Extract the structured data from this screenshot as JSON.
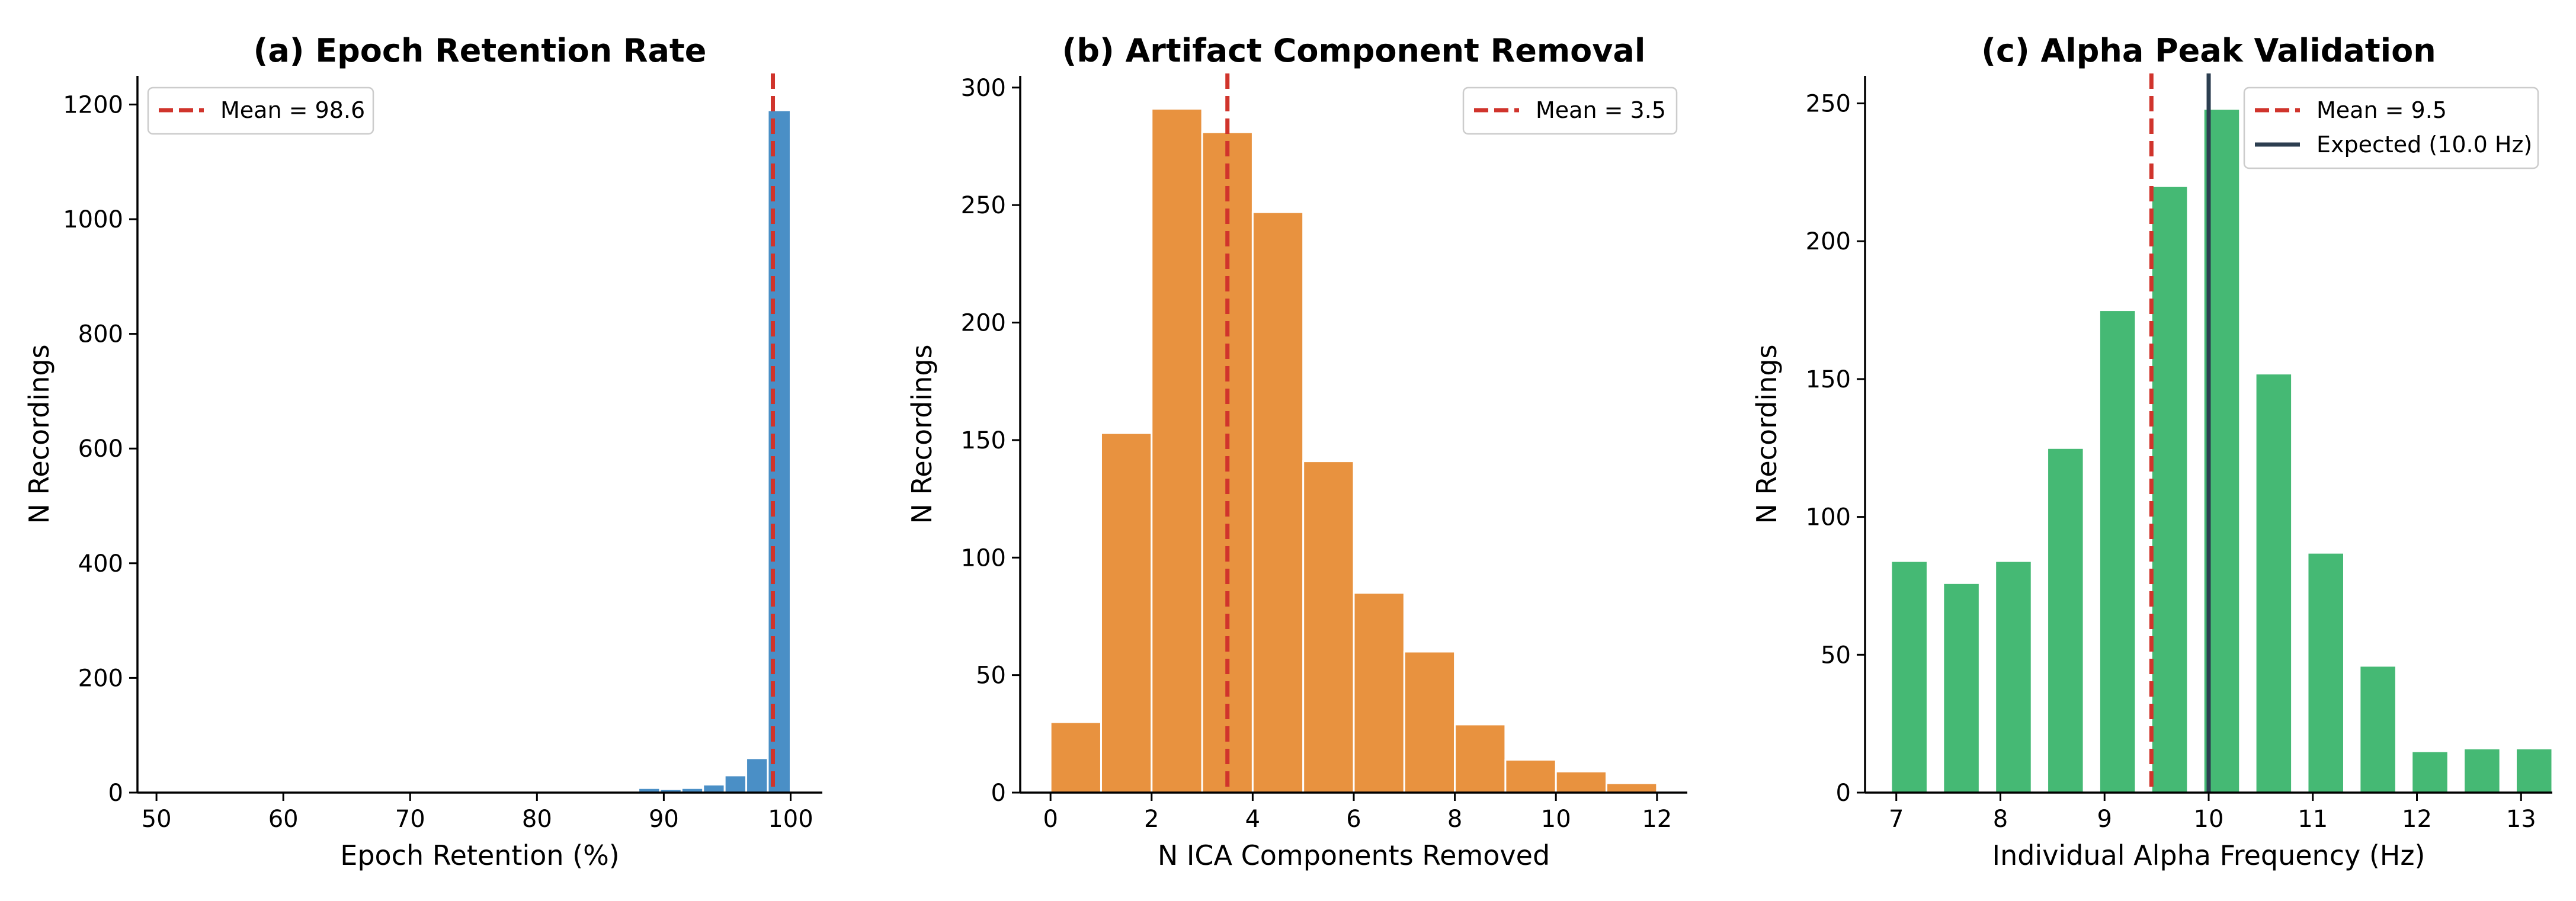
{
  "chart_data": [
    {
      "type": "bar",
      "panel_id": "a",
      "title": "(a) Epoch Retention Rate",
      "xlabel": "Epoch Retention (%)",
      "ylabel": "N Recordings",
      "xlim": [
        48.5,
        102.5
      ],
      "ylim": [
        0,
        1250
      ],
      "xticks": [
        50,
        60,
        70,
        80,
        90,
        100
      ],
      "yticks": [
        0,
        200,
        400,
        600,
        800,
        1000,
        1200
      ],
      "bar_color": "#4A8FC6",
      "bins": [
        {
          "x0": 88.0,
          "x1": 89.7,
          "value": 8
        },
        {
          "x0": 89.7,
          "x1": 91.4,
          "value": 6
        },
        {
          "x0": 91.4,
          "x1": 93.1,
          "value": 8
        },
        {
          "x0": 93.1,
          "x1": 94.8,
          "value": 14
        },
        {
          "x0": 94.8,
          "x1": 96.5,
          "value": 30
        },
        {
          "x0": 96.5,
          "x1": 98.2,
          "value": 60
        },
        {
          "x0": 98.2,
          "x1": 100.0,
          "value": 1190
        }
      ],
      "mean_line": {
        "x": 98.6,
        "label": "Mean = 98.6",
        "color": "#D0342C"
      },
      "legend": {
        "position": "top-left",
        "entries": [
          "Mean = 98.6"
        ]
      }
    },
    {
      "type": "bar",
      "panel_id": "b",
      "title": "(b) Artifact Component Removal",
      "xlabel": "N ICA Components Removed",
      "ylabel": "N Recordings",
      "xlim": [
        -0.6,
        12.6
      ],
      "ylim": [
        0,
        305
      ],
      "xticks": [
        0,
        2,
        4,
        6,
        8,
        10,
        12
      ],
      "yticks": [
        0,
        50,
        100,
        150,
        200,
        250,
        300
      ],
      "bar_color": "#E8923F",
      "bins": [
        {
          "x0": 0,
          "x1": 1,
          "value": 30
        },
        {
          "x0": 1,
          "x1": 2,
          "value": 153
        },
        {
          "x0": 2,
          "x1": 3,
          "value": 291
        },
        {
          "x0": 3,
          "x1": 4,
          "value": 281
        },
        {
          "x0": 4,
          "x1": 5,
          "value": 247
        },
        {
          "x0": 5,
          "x1": 6,
          "value": 141
        },
        {
          "x0": 6,
          "x1": 7,
          "value": 85
        },
        {
          "x0": 7,
          "x1": 8,
          "value": 60
        },
        {
          "x0": 8,
          "x1": 9,
          "value": 29
        },
        {
          "x0": 9,
          "x1": 10,
          "value": 14
        },
        {
          "x0": 10,
          "x1": 11,
          "value": 9
        },
        {
          "x0": 11,
          "x1": 12,
          "value": 4
        }
      ],
      "mean_line": {
        "x": 3.5,
        "label": "Mean = 3.5",
        "color": "#D0342C"
      },
      "legend": {
        "position": "top-right",
        "entries": [
          "Mean = 3.5"
        ]
      }
    },
    {
      "type": "bar",
      "panel_id": "c",
      "title": "(c) Alpha Peak Validation",
      "xlabel": "Individual Alpha Frequency (Hz)",
      "ylabel": "N Recordings",
      "xlim": [
        6.7,
        13.3
      ],
      "ylim": [
        0,
        260
      ],
      "xticks": [
        7,
        8,
        9,
        10,
        11,
        12,
        13
      ],
      "yticks": [
        0,
        50,
        100,
        150,
        200,
        250
      ],
      "bar_color": "#45B974",
      "bins": [
        {
          "x0": 6.95,
          "x1": 7.3,
          "value": 84
        },
        {
          "x0": 7.45,
          "x1": 7.8,
          "value": 76
        },
        {
          "x0": 7.95,
          "x1": 8.3,
          "value": 84
        },
        {
          "x0": 8.45,
          "x1": 8.8,
          "value": 125
        },
        {
          "x0": 8.95,
          "x1": 9.3,
          "value": 175
        },
        {
          "x0": 9.45,
          "x1": 9.8,
          "value": 220
        },
        {
          "x0": 9.95,
          "x1": 10.3,
          "value": 248
        },
        {
          "x0": 10.45,
          "x1": 10.8,
          "value": 152
        },
        {
          "x0": 10.95,
          "x1": 11.3,
          "value": 87
        },
        {
          "x0": 11.45,
          "x1": 11.8,
          "value": 46
        },
        {
          "x0": 11.95,
          "x1": 12.3,
          "value": 15
        },
        {
          "x0": 12.45,
          "x1": 12.8,
          "value": 16
        },
        {
          "x0": 12.95,
          "x1": 13.3,
          "value": 16
        }
      ],
      "mean_line": {
        "x": 9.45,
        "label": "Mean = 9.5",
        "color": "#D0342C"
      },
      "expected_line": {
        "x": 10.0,
        "label": "Expected (10.0 Hz)",
        "color": "#2C3E50"
      },
      "legend": {
        "position": "top-right",
        "entries": [
          "Mean = 9.5",
          "Expected (10.0 Hz)"
        ]
      }
    }
  ]
}
